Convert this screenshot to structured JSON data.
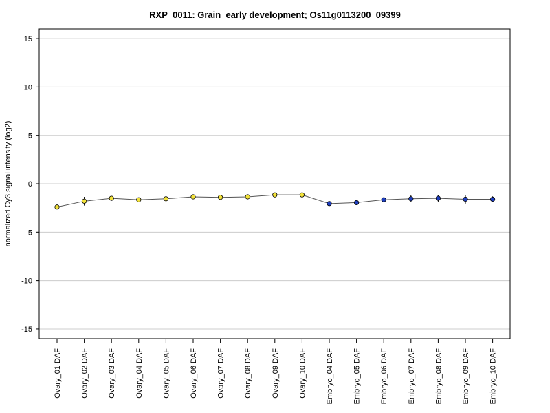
{
  "chart_data": {
    "type": "line",
    "title": "RXP_0011: Grain_early development; Os11g0113200_09399",
    "xlabel": "",
    "ylabel": "normalized Cy3 signal intensity (log2)",
    "ylim": [
      -16,
      16
    ],
    "yticks": [
      15,
      10,
      5,
      0,
      -5,
      -10,
      -15
    ],
    "grid": "horizontal",
    "categories": [
      "Ovary_01 DAF",
      "Ovary_02 DAF",
      "Ovary_03 DAF",
      "Ovary_04 DAF",
      "Ovary_05 DAF",
      "Ovary_06 DAF",
      "Ovary_07 DAF",
      "Ovary_08 DAF",
      "Ovary_09 DAF",
      "Ovary_10 DAF",
      "Embryo_04 DAF",
      "Embryo_05 DAF",
      "Embryo_06 DAF",
      "Embryo_07 DAF",
      "Embryo_08 DAF",
      "Embryo_09 DAF",
      "Embryo_10 DAF"
    ],
    "values": [
      -2.4,
      -1.8,
      -1.5,
      -1.65,
      -1.55,
      -1.35,
      -1.4,
      -1.35,
      -1.15,
      -1.15,
      -2.05,
      -1.95,
      -1.65,
      -1.55,
      -1.5,
      -1.6,
      -1.6
    ],
    "errors": [
      0.15,
      0.45,
      0.1,
      0.15,
      0.1,
      0.1,
      0.1,
      0.15,
      0.1,
      0.1,
      0.1,
      0.1,
      0.15,
      0.35,
      0.35,
      0.45,
      0.3
    ],
    "point_colors": [
      "#f2e23a",
      "#f2e23a",
      "#f2e23a",
      "#f2e23a",
      "#f2e23a",
      "#f2e23a",
      "#f2e23a",
      "#f2e23a",
      "#f2e23a",
      "#f2e23a",
      "#1f3fbf",
      "#1f3fbf",
      "#1f3fbf",
      "#1f3fbf",
      "#1f3fbf",
      "#1f3fbf",
      "#1f3fbf"
    ],
    "line_color": "#555555",
    "grid_color": "#cccccc"
  }
}
